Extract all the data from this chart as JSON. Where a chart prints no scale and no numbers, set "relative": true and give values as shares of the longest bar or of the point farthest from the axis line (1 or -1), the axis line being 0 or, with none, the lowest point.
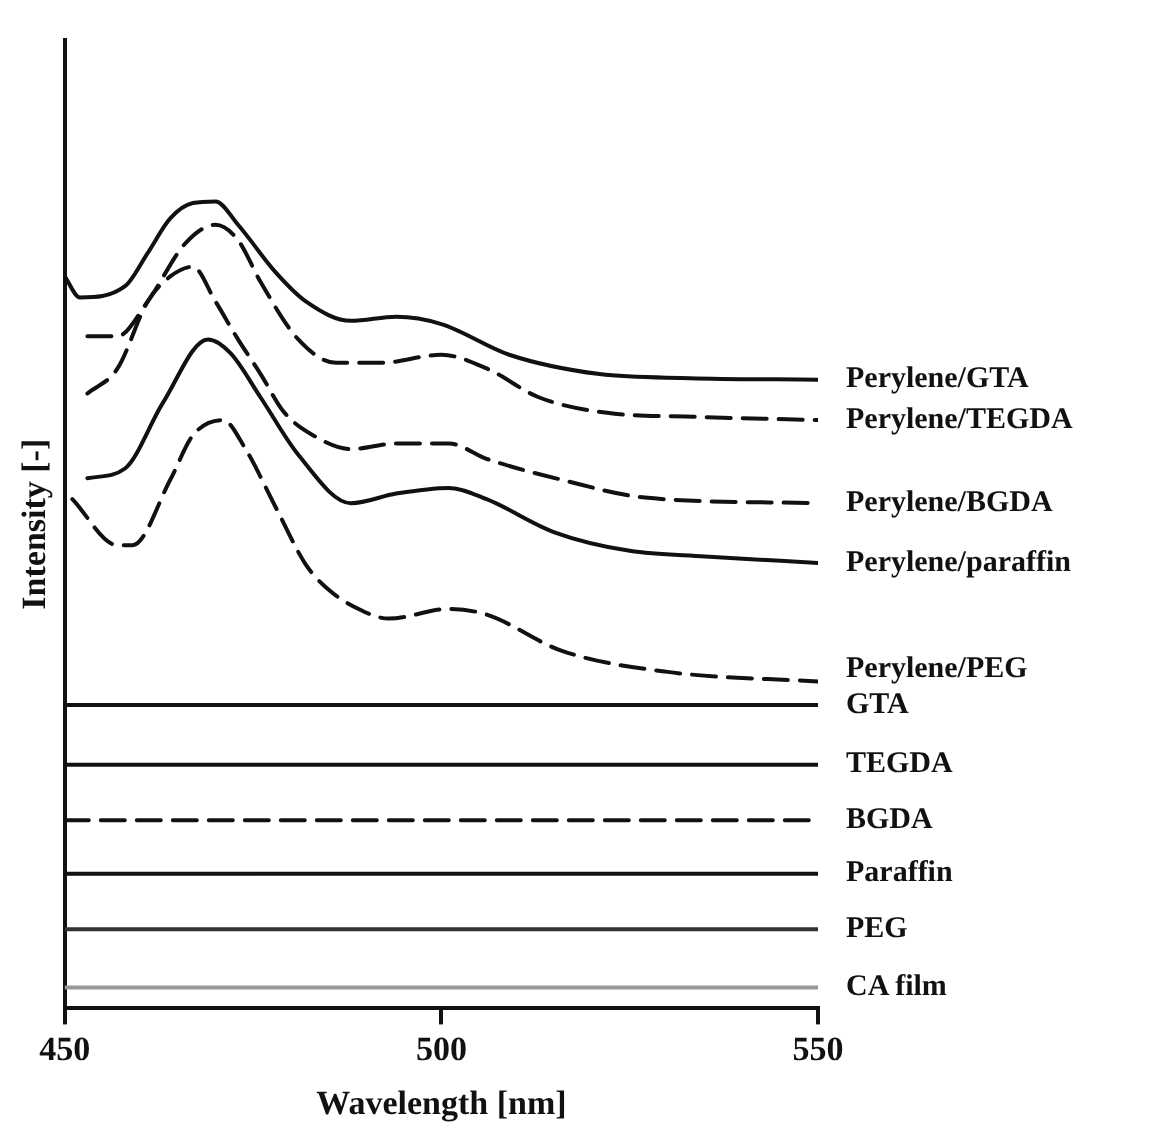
{
  "chart_data": {
    "type": "line",
    "xlabel": "Wavelength [nm]",
    "ylabel": "Intensity [-]",
    "relative": true,
    "xlim": [
      450,
      550
    ],
    "xticks": [
      450,
      500,
      550
    ],
    "grid": false,
    "legend": false,
    "marker": "none",
    "series": [
      {
        "name": "Perylene/GTA",
        "color": "#111111",
        "line_style": "solid",
        "x": [
          450,
          452,
          458,
          461,
          464,
          467,
          470,
          473,
          478,
          482,
          488,
          494,
          500,
          509,
          521,
          533,
          550
        ],
        "values": [
          0.907,
          0.881,
          0.895,
          0.936,
          0.979,
          0.998,
          1.0,
          0.971,
          0.912,
          0.876,
          0.852,
          0.857,
          0.848,
          0.81,
          0.786,
          0.781,
          0.779
        ]
      },
      {
        "name": "Perylene/TEGDA",
        "color": "#111111",
        "line_style": "dashed",
        "x": [
          453,
          457,
          461,
          466,
          470,
          473,
          476,
          481,
          486,
          492,
          500,
          506,
          513,
          522,
          534,
          550
        ],
        "values": [
          0.833,
          0.833,
          0.876,
          0.948,
          0.971,
          0.952,
          0.9,
          0.829,
          0.8,
          0.8,
          0.81,
          0.793,
          0.757,
          0.738,
          0.733,
          0.729
        ]
      },
      {
        "name": "Perylene/BGDA",
        "color": "#111111",
        "line_style": "dashed",
        "x": [
          453,
          457,
          461,
          464,
          467,
          470,
          473,
          476,
          479,
          483,
          488,
          494,
          501,
          506,
          516,
          527,
          550
        ],
        "values": [
          0.762,
          0.793,
          0.876,
          0.907,
          0.919,
          0.876,
          0.829,
          0.786,
          0.74,
          0.71,
          0.693,
          0.7,
          0.7,
          0.681,
          0.655,
          0.633,
          0.626
        ]
      },
      {
        "name": "Perylene/paraffin",
        "color": "#111111",
        "line_style": "solid",
        "x": [
          453,
          458,
          463,
          469,
          472,
          476,
          481,
          488,
          494,
          501,
          506,
          515,
          525,
          535,
          550
        ],
        "values": [
          0.657,
          0.669,
          0.75,
          0.829,
          0.812,
          0.757,
          0.686,
          0.626,
          0.638,
          0.645,
          0.631,
          0.59,
          0.567,
          0.56,
          0.552
        ]
      },
      {
        "name": "Perylene/PEG",
        "color": "#111111",
        "line_style": "dashed",
        "x": [
          451,
          457,
          459,
          464,
          467,
          471,
          474,
          478,
          482,
          485,
          489,
          493,
          501,
          506,
          516,
          530,
          550
        ],
        "values": [
          0.631,
          0.574,
          0.574,
          0.655,
          0.71,
          0.729,
          0.693,
          0.621,
          0.55,
          0.519,
          0.495,
          0.483,
          0.495,
          0.488,
          0.443,
          0.417,
          0.405
        ]
      },
      {
        "name": "GTA",
        "color": "#111111",
        "line_style": "solid",
        "x": [
          450,
          550
        ],
        "values": [
          0.376,
          0.376
        ]
      },
      {
        "name": "TEGDA",
        "color": "#111111",
        "line_style": "solid",
        "x": [
          450,
          550
        ],
        "values": [
          0.302,
          0.302
        ]
      },
      {
        "name": "BGDA",
        "color": "#111111",
        "line_style": "dashed",
        "x": [
          450,
          550
        ],
        "values": [
          0.233,
          0.233
        ]
      },
      {
        "name": "Paraffin",
        "color": "#111111",
        "line_style": "solid",
        "x": [
          450,
          550
        ],
        "values": [
          0.167,
          0.167
        ]
      },
      {
        "name": "PEG",
        "color": "#333333",
        "line_style": "solid",
        "x": [
          450,
          550
        ],
        "values": [
          0.098,
          0.098
        ]
      },
      {
        "name": "CA film",
        "color": "#999999",
        "line_style": "solid",
        "x": [
          450,
          550
        ],
        "values": [
          0.026,
          0.026
        ]
      }
    ]
  }
}
